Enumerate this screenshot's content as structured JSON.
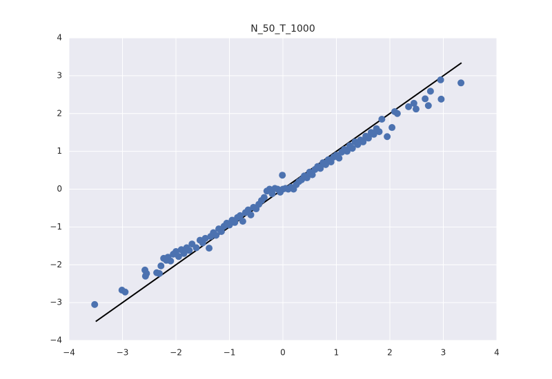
{
  "chart_data": {
    "type": "scatter",
    "title": "N_50_T_1000",
    "xlim": [
      -4,
      4
    ],
    "ylim": [
      -4,
      4
    ],
    "xticks": [
      {
        "value": -4,
        "label": "−4"
      },
      {
        "value": -3,
        "label": "−3"
      },
      {
        "value": -2,
        "label": "−2"
      },
      {
        "value": -1,
        "label": "−1"
      },
      0,
      1,
      2,
      3,
      4
    ],
    "yticks": [
      {
        "value": -4,
        "label": "−4"
      },
      {
        "value": -3,
        "label": "−3"
      },
      {
        "value": -2,
        "label": "−2"
      },
      {
        "value": -1,
        "label": "−1"
      },
      0,
      1,
      2,
      3,
      4
    ],
    "grid": true,
    "background": "#eaeaf2",
    "grid_color": "#ffffff",
    "color": "#4c72b0",
    "x": [
      -3.52,
      -3.01,
      -2.95,
      -2.58,
      -2.57,
      -2.55,
      -2.36,
      -2.31,
      -2.28,
      -2.23,
      -2.18,
      -2.15,
      -2.1,
      -2.05,
      -2.0,
      -1.95,
      -1.9,
      -1.85,
      -1.8,
      -1.75,
      -1.7,
      -1.62,
      -1.55,
      -1.5,
      -1.45,
      -1.38,
      -1.35,
      -1.3,
      -1.25,
      -1.2,
      -1.15,
      -1.1,
      -1.05,
      -1.0,
      -0.95,
      -0.9,
      -0.85,
      -0.8,
      -0.75,
      -0.7,
      -0.65,
      -0.6,
      -0.55,
      -0.5,
      -0.45,
      -0.4,
      -0.35,
      -0.3,
      -0.25,
      -0.2,
      -0.15,
      -0.1,
      -0.05,
      0.0,
      -0.01,
      0.05,
      0.1,
      0.15,
      0.2,
      0.25,
      0.3,
      0.35,
      0.4,
      0.45,
      0.5,
      0.55,
      0.6,
      0.65,
      0.7,
      0.75,
      0.8,
      0.85,
      0.9,
      0.95,
      1.0,
      1.05,
      1.1,
      1.15,
      1.2,
      1.25,
      1.3,
      1.35,
      1.4,
      1.45,
      1.5,
      1.55,
      1.6,
      1.65,
      1.7,
      1.75,
      1.8,
      1.85,
      1.95,
      2.04,
      2.09,
      2.14,
      2.35,
      2.45,
      2.49,
      2.66,
      2.72,
      2.76,
      2.95,
      2.96,
      3.33
    ],
    "y": [
      -3.05,
      -2.67,
      -2.72,
      -2.14,
      -2.3,
      -2.23,
      -2.21,
      -2.23,
      -2.03,
      -1.83,
      -1.88,
      -1.8,
      -1.9,
      -1.72,
      -1.65,
      -1.78,
      -1.6,
      -1.7,
      -1.55,
      -1.62,
      -1.45,
      -1.55,
      -1.35,
      -1.42,
      -1.3,
      -1.56,
      -1.25,
      -1.15,
      -1.22,
      -1.05,
      -1.12,
      -0.98,
      -0.9,
      -0.95,
      -0.82,
      -0.88,
      -0.75,
      -0.7,
      -0.85,
      -0.62,
      -0.55,
      -0.68,
      -0.48,
      -0.52,
      -0.4,
      -0.3,
      -0.22,
      -0.05,
      0.0,
      -0.12,
      0.02,
      0.0,
      -0.08,
      0.0,
      0.37,
      0.02,
      0.0,
      0.05,
      0.0,
      0.12,
      0.2,
      0.25,
      0.35,
      0.3,
      0.45,
      0.38,
      0.52,
      0.6,
      0.55,
      0.7,
      0.65,
      0.78,
      0.72,
      0.85,
      0.9,
      0.82,
      0.98,
      1.05,
      1.0,
      1.15,
      1.08,
      1.25,
      1.18,
      1.3,
      1.25,
      1.4,
      1.35,
      1.5,
      1.45,
      1.6,
      1.52,
      1.85,
      1.39,
      1.63,
      2.05,
      2.0,
      2.18,
      2.27,
      2.12,
      2.39,
      2.21,
      2.59,
      2.89,
      2.38,
      2.81
    ],
    "line": {
      "x": [
        -3.5,
        3.34
      ],
      "y": [
        -3.5,
        3.34
      ],
      "color": "#000000"
    }
  }
}
